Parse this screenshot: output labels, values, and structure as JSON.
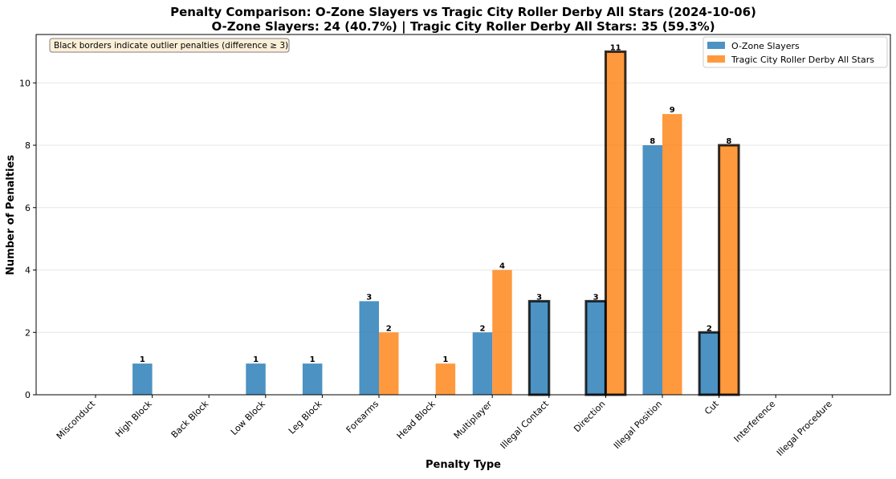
{
  "chart_data": {
    "type": "bar",
    "title": "Penalty Comparison: O-Zone Slayers vs Tragic City Roller Derby All Stars (2024-10-06)",
    "subtitle": "O-Zone Slayers: 24 (40.7%) | Tragic City Roller Derby All Stars: 35 (59.3%)",
    "xlabel": "Penalty Type",
    "ylabel": "Number of Penalties",
    "categories": [
      "Misconduct",
      "High Block",
      "Back Block",
      "Low Block",
      "Leg Block",
      "Forearms",
      "Head Block",
      "Multiplayer",
      "Illegal Contact",
      "Direction",
      "Illegal Position",
      "Cut",
      "Interference",
      "Illegal Procedure"
    ],
    "series": [
      {
        "name": "O-Zone Slayers",
        "color": "#1f77b4",
        "values": [
          0,
          1,
          0,
          1,
          1,
          3,
          0,
          2,
          3,
          3,
          8,
          2,
          0,
          0
        ]
      },
      {
        "name": "Tragic City Roller Derby All Stars",
        "color": "#ff7f0e",
        "values": [
          0,
          0,
          0,
          0,
          0,
          2,
          1,
          4,
          0,
          11,
          9,
          8,
          0,
          0
        ]
      }
    ],
    "outlier_categories": [
      "Illegal Contact",
      "Direction",
      "Cut"
    ],
    "annotation": "Black borders indicate outlier penalties (difference ≥ 3)",
    "ylim": [
      0,
      11.55
    ],
    "yticks": [
      0,
      2,
      4,
      6,
      8,
      10
    ],
    "grid": "y",
    "legend_position": "top-right"
  }
}
